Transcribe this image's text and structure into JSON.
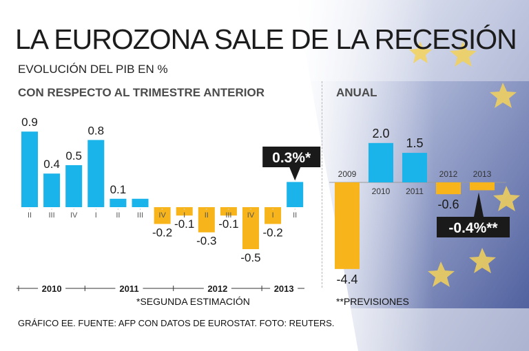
{
  "title": "LA EUROZONA SALE DE LA RECESIÓN",
  "subtitle": "EVOLUCIÓN DEL PIB EN %",
  "quarterly_heading": "CON RESPECTO AL TRIMESTRE ANTERIOR",
  "annual_heading": "ANUAL",
  "quarterly_footnote": "*SEGUNDA ESTIMACIÓN",
  "annual_footnote": "**PREVISIONES",
  "source": "GRÁFICO EE. FUENTE: AFP CON DATOS DE EUROSTAT. FOTO: REUTERS.",
  "colors": {
    "positive": "#1ab4ea",
    "negative": "#f7b51b",
    "callout": "#1a1a1a",
    "callout_text": "#ffffff"
  },
  "chart_data": [
    {
      "type": "bar",
      "title": "CON RESPECTO AL TRIMESTRE ANTERIOR",
      "ylim": [
        -0.5,
        0.9
      ],
      "categories": [
        "II",
        "III",
        "IV",
        "I",
        "II",
        "III",
        "IV",
        "I",
        "II",
        "III",
        "IV",
        "I",
        "II"
      ],
      "values": [
        0.9,
        0.4,
        0.5,
        0.8,
        0.1,
        0.1,
        -0.2,
        -0.1,
        -0.3,
        -0.1,
        -0.5,
        -0.2,
        0.3
      ],
      "labels": [
        "0.9",
        "0.4",
        "0.5",
        "0.8",
        "0.1",
        "",
        "-0.2",
        "-0.1",
        "-0.3",
        "-0.1",
        "-0.5",
        "-0.2",
        ""
      ],
      "years": [
        {
          "label": "2010",
          "from": 0,
          "to": 2
        },
        {
          "label": "2011",
          "from": 3,
          "to": 6
        },
        {
          "label": "2012",
          "from": 7,
          "to": 10
        },
        {
          "label": "2013",
          "from": 11,
          "to": 12
        }
      ],
      "callout": {
        "index": 12,
        "text": "0.3%*"
      }
    },
    {
      "type": "bar",
      "title": "ANUAL",
      "ylim": [
        -4.4,
        2.0
      ],
      "categories": [
        "2009",
        "2010",
        "2011",
        "2012",
        "2013"
      ],
      "values": [
        -4.4,
        2.0,
        1.5,
        -0.6,
        -0.4
      ],
      "labels": [
        "-4.4",
        "2.0",
        "1.5",
        "-0.6",
        ""
      ],
      "callout": {
        "index": 4,
        "text": "-0.4%**"
      }
    }
  ]
}
